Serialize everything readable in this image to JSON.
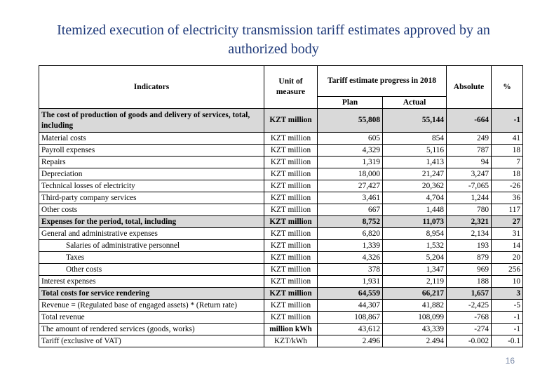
{
  "title": "Itemized execution of electricity transmission tariff estimates approved by an authorized body",
  "headers": {
    "indicators": "Indicators",
    "unit": "Unit of measure",
    "progress": "Tariff estimate progress in 2018",
    "plan": "Plan",
    "actual": "Actual",
    "absolute": "Absolute",
    "percent": "%"
  },
  "rows": [
    {
      "indicator": "The cost of production of goods and delivery of services, total, including",
      "unit": "KZT million",
      "plan": "55,808",
      "actual": "55,144",
      "absolute": "-664",
      "percent": "-1",
      "bold": true
    },
    {
      "indicator": "Material costs",
      "unit": "KZT million",
      "plan": "605",
      "actual": "854",
      "absolute": "249",
      "percent": "41"
    },
    {
      "indicator": "Payroll expenses",
      "unit": "KZT million",
      "plan": "4,329",
      "actual": "5,116",
      "absolute": "787",
      "percent": "18"
    },
    {
      "indicator": "Repairs",
      "unit": "KZT million",
      "plan": "1,319",
      "actual": "1,413",
      "absolute": "94",
      "percent": "7"
    },
    {
      "indicator": "Depreciation",
      "unit": "KZT million",
      "plan": "18,000",
      "actual": "21,247",
      "absolute": "3,247",
      "percent": "18"
    },
    {
      "indicator": "Technical losses of electricity",
      "unit": "KZT million",
      "plan": "27,427",
      "actual": "20,362",
      "absolute": "-7,065",
      "percent": "-26"
    },
    {
      "indicator": "Third-party company services",
      "unit": "KZT million",
      "plan": "3,461",
      "actual": "4,704",
      "absolute": "1,244",
      "percent": "36"
    },
    {
      "indicator": "Other costs",
      "unit": "KZT million",
      "plan": "667",
      "actual": "1,448",
      "absolute": "780",
      "percent": "117"
    },
    {
      "indicator": "Expenses for the period, total, including",
      "unit": "KZT million",
      "plan": "8,752",
      "actual": "11,073",
      "absolute": "2,321",
      "percent": "27",
      "bold": true
    },
    {
      "indicator": "General and administrative expenses",
      "unit": "KZT million",
      "plan": "6,820",
      "actual": "8,954",
      "absolute": "2,134",
      "percent": "31"
    },
    {
      "indicator": "Salaries of administrative personnel",
      "unit": "KZT million",
      "plan": "1,339",
      "actual": "1,532",
      "absolute": "193",
      "percent": "14",
      "indent": true
    },
    {
      "indicator": "Taxes",
      "unit": "KZT million",
      "plan": "4,326",
      "actual": "5,204",
      "absolute": "879",
      "percent": "20",
      "indent": true
    },
    {
      "indicator": "Other costs",
      "unit": "KZT million",
      "plan": "378",
      "actual": "1,347",
      "absolute": "969",
      "percent": "256",
      "indent": true
    },
    {
      "indicator": "Interest expenses",
      "unit": "KZT million",
      "plan": "1,931",
      "actual": "2,119",
      "absolute": "188",
      "percent": "10"
    },
    {
      "indicator": "Total costs for service rendering",
      "unit": "KZT million",
      "plan": "64,559",
      "actual": "66,217",
      "absolute": "1,657",
      "percent": "3",
      "bold": true
    },
    {
      "indicator": "Revenue = (Regulated base of engaged assets) * (Return rate)",
      "unit": "KZT million",
      "plan": "44,307",
      "actual": "41,882",
      "absolute": "-2,425",
      "percent": "-5"
    },
    {
      "indicator": "Total revenue",
      "unit": "KZT million",
      "plan": "108,867",
      "actual": "108,099",
      "absolute": "-768",
      "percent": "-1"
    },
    {
      "indicator": "The amount of rendered services (goods, works)",
      "unit": "million kWh",
      "plan": "43,612",
      "actual": "43,339",
      "absolute": "-274",
      "percent": "-1",
      "unit_bold": true
    },
    {
      "indicator": "Tariff (exclusive of VAT)",
      "unit": "KZT/kWh",
      "plan": "2.496",
      "actual": "2.494",
      "absolute": "-0.002",
      "percent": "-0.1"
    }
  ],
  "page_number": "16"
}
